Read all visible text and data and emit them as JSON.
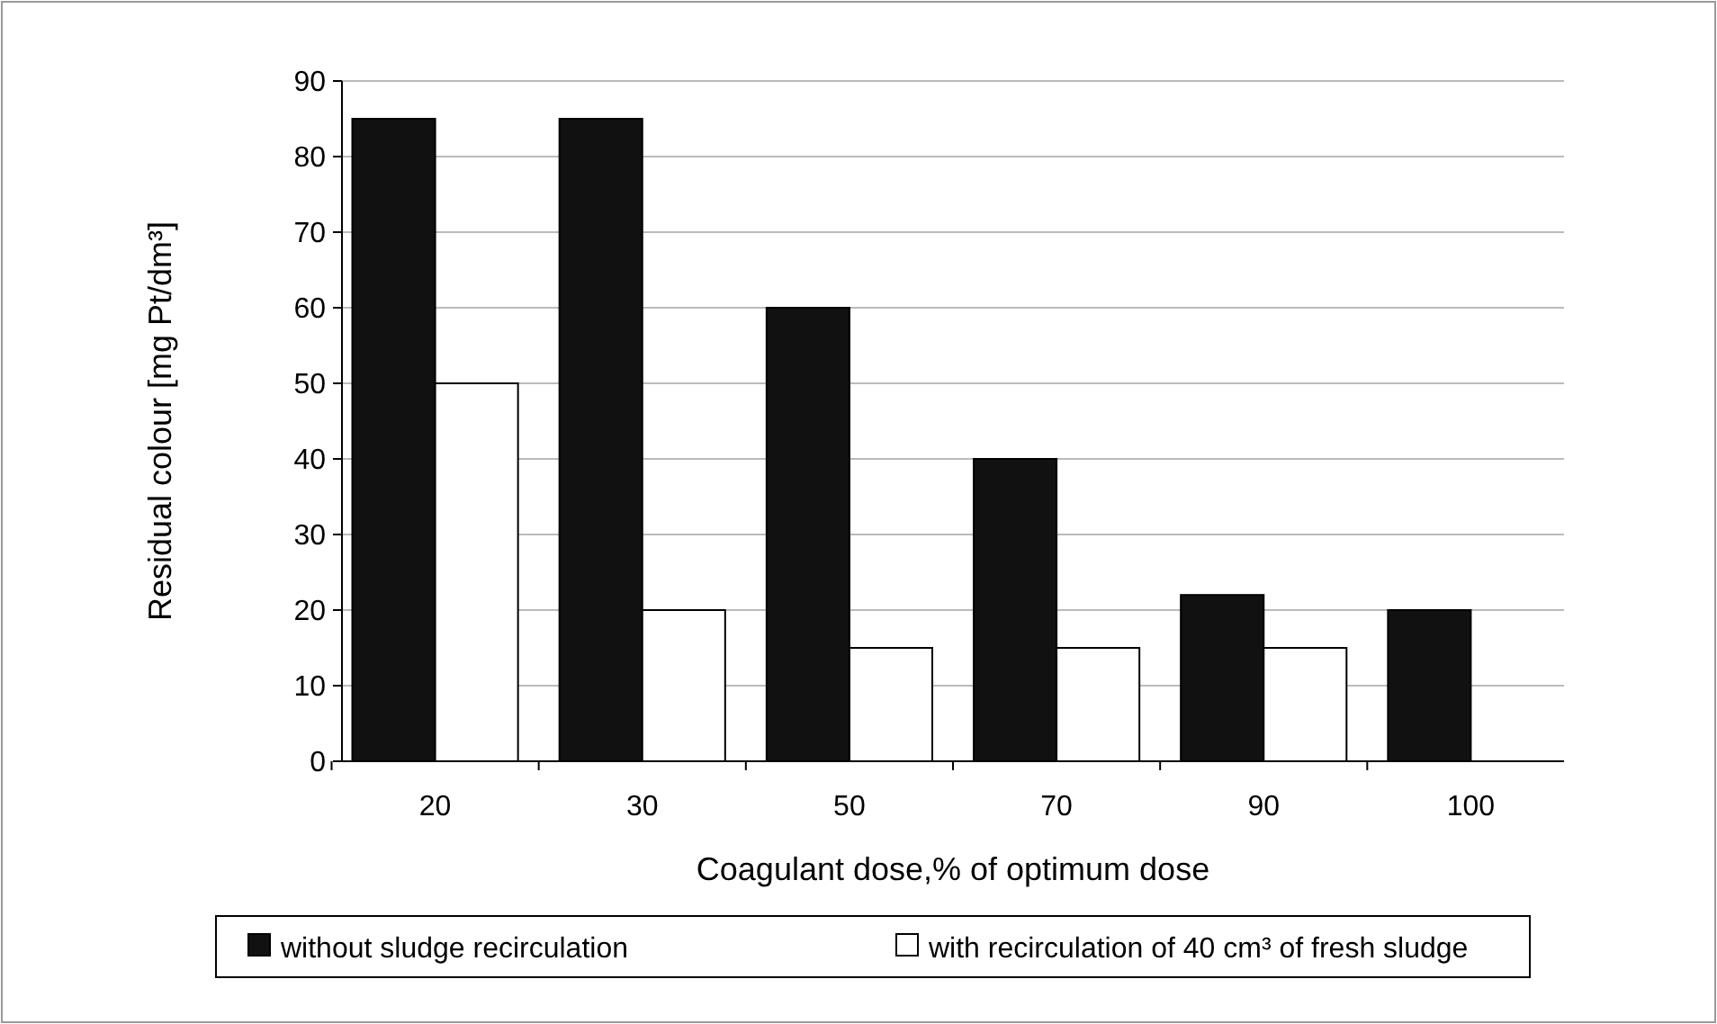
{
  "chart_data": {
    "type": "bar",
    "xlabel": "Coagulant dose,% of optimum dose",
    "ylabel": "Residual colour [mg Pt/dm³]",
    "categories": [
      "20",
      "30",
      "50",
      "70",
      "90",
      "100"
    ],
    "series": [
      {
        "name": "without sludge recirculation",
        "color": "#111111",
        "values": [
          85,
          85,
          60,
          40,
          22,
          20
        ]
      },
      {
        "name": "with recirculation of 40 cm³ of fresh sludge",
        "color": "#ffffff",
        "values": [
          50,
          20,
          15,
          15,
          15,
          null
        ]
      }
    ],
    "ylim": [
      0,
      90
    ],
    "yticks": [
      0,
      10,
      20,
      30,
      40,
      50,
      60,
      70,
      80,
      90
    ],
    "grid": "y",
    "legend": "bottom"
  }
}
